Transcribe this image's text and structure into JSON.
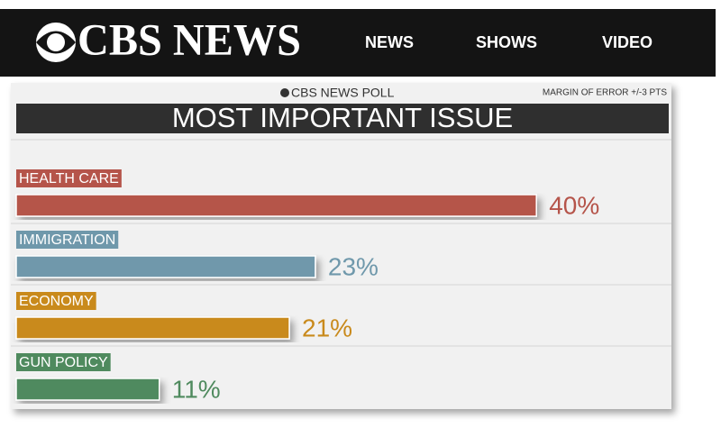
{
  "header": {
    "logo": "CBS NEWS",
    "nav": [
      "NEWS",
      "SHOWS",
      "VIDEO"
    ]
  },
  "chart_data": {
    "type": "bar",
    "source": "CBS NEWS POLL",
    "note": "MARGIN OF ERROR +/-3 PTS",
    "title": "MOST IMPORTANT ISSUE",
    "categories": [
      "HEALTH CARE",
      "IMMIGRATION",
      "ECONOMY",
      "GUN POLICY"
    ],
    "values": [
      40,
      23,
      21,
      11
    ],
    "value_labels": [
      "40%",
      "23%",
      "21%",
      "11%"
    ],
    "colors": [
      "#b5544a",
      "#6f98ab",
      "#c98a1c",
      "#4f8a5e"
    ]
  }
}
